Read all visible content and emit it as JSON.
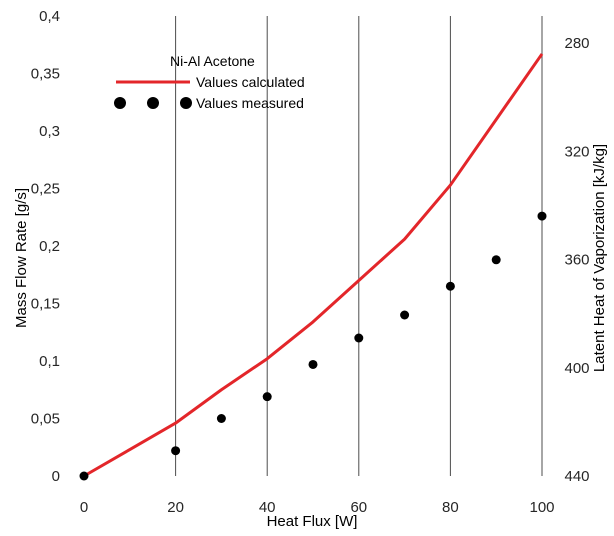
{
  "chart_data": {
    "type": "line",
    "xlabel": "Heat Flux [W]",
    "ylabel": "Mass Flow Rate [g/s]",
    "y2label": "Latent Heat of Vaporization [kJ/kg]",
    "xlim": [
      0,
      100
    ],
    "ylim": [
      0,
      0.4
    ],
    "y2lim": [
      440,
      270
    ],
    "x_ticks": [
      0,
      20,
      40,
      60,
      80,
      100
    ],
    "x_tick_labels": [
      "0",
      "20",
      "40",
      "60",
      "80",
      "100"
    ],
    "y_ticks": [
      0,
      0.05,
      0.1,
      0.15,
      0.2,
      0.25,
      0.3,
      0.35,
      0.4
    ],
    "y_tick_labels": [
      "0",
      "0,05",
      "0,1",
      "0,15",
      "0,2",
      "0,25",
      "0,3",
      "0,35",
      "0,4"
    ],
    "y2_ticks": [
      280,
      320,
      360,
      400,
      440
    ],
    "y2_tick_labels": [
      "280",
      "320",
      "360",
      "400",
      "440"
    ],
    "vertical_gridlines": [
      20,
      40,
      60,
      80,
      100
    ],
    "legend": {
      "title": "Ni-Al Acetone",
      "placement": "top-left"
    },
    "series": [
      {
        "name": "Values calculated",
        "style": "line",
        "color": "#e3262a",
        "x": [
          0,
          10,
          20,
          30,
          40,
          50,
          60,
          70,
          80,
          90,
          100
        ],
        "y": [
          0,
          0.023,
          0.046,
          0.075,
          0.102,
          0.134,
          0.17,
          0.206,
          0.253,
          0.31,
          0.367
        ]
      },
      {
        "name": "Values measured",
        "style": "markers",
        "color": "#000000",
        "x": [
          0,
          20,
          30,
          40,
          50,
          60,
          70,
          80,
          90,
          100
        ],
        "y": [
          0,
          0.022,
          0.05,
          0.069,
          0.097,
          0.12,
          0.14,
          0.165,
          0.188,
          0.226
        ]
      }
    ]
  }
}
